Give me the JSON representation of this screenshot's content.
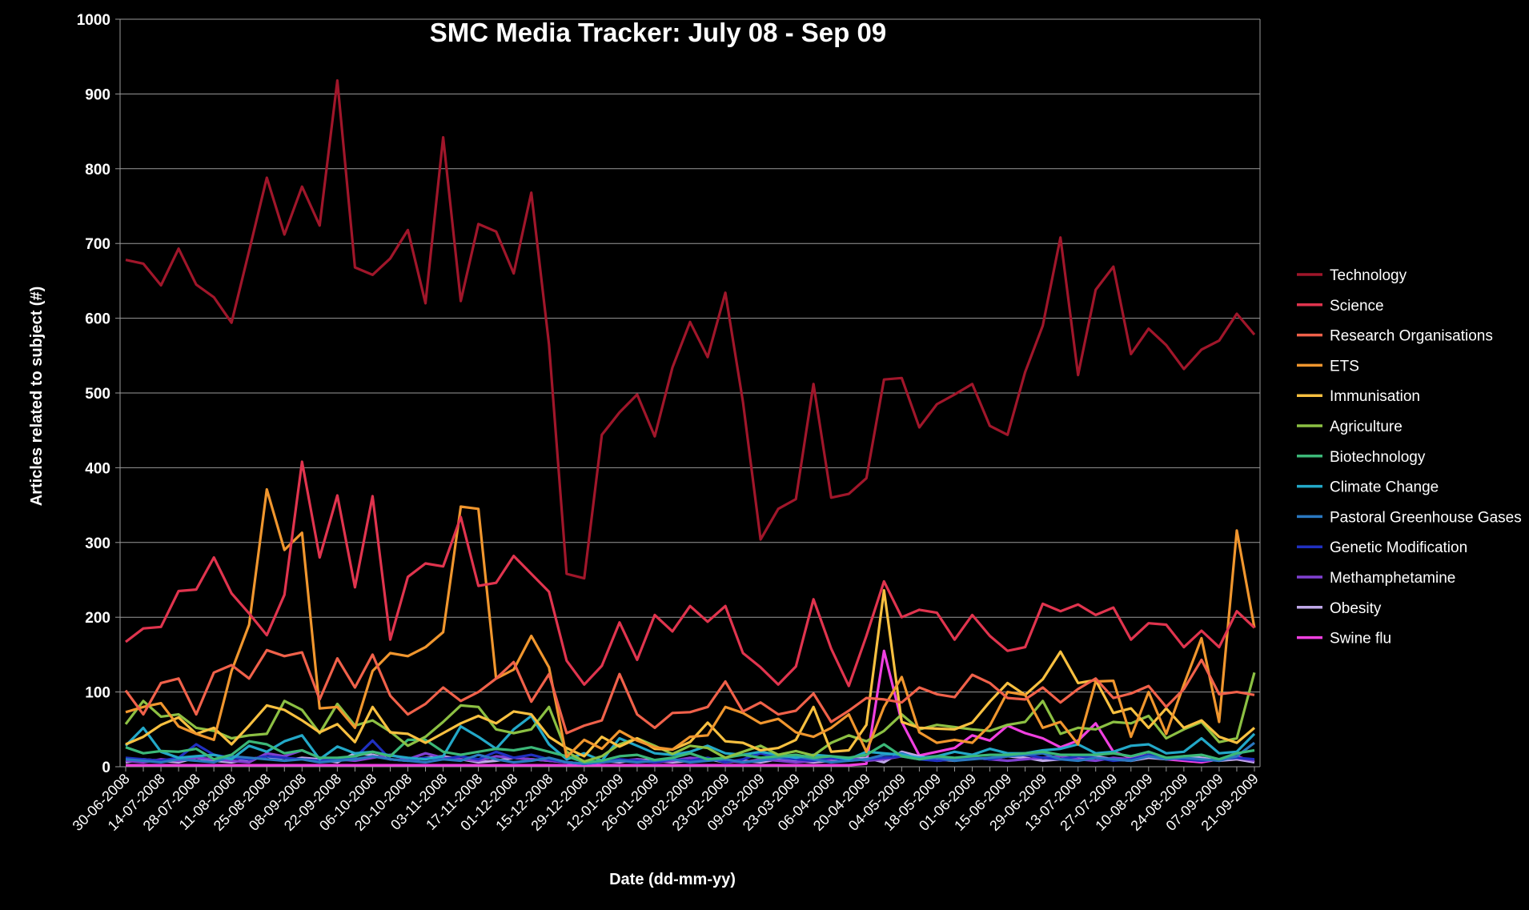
{
  "chart_data": {
    "type": "line",
    "title": "SMC Media Tracker: July 08 - Sep 09",
    "xlabel": "Date (dd-mm-yy)",
    "ylabel": "Articles related to subject (#)",
    "ylim": [
      0,
      1000
    ],
    "yticks": [
      0,
      100,
      200,
      300,
      400,
      500,
      600,
      700,
      800,
      900,
      1000
    ],
    "grid": "horizontal",
    "legend_position": "right",
    "x_tick_labels": [
      "30-06-2008",
      "14-07-2008",
      "28-07-2008",
      "11-08-2008",
      "25-08-2008",
      "08-09-2008",
      "22-09-2008",
      "06-10-2008",
      "20-10-2008",
      "03-11-2008",
      "17-11-2008",
      "01-12-2008",
      "15-12-2008",
      "29-12-2008",
      "12-01-2009",
      "26-01-2009",
      "09-02-2009",
      "23-02-2009",
      "09-03-2009",
      "23-03-2009",
      "06-04-2009",
      "20-04-2009",
      "04-05-2009",
      "18-05-2009",
      "01-06-2009",
      "15-06-2009",
      "29-06-2009",
      "13-07-2009",
      "27-07-2009",
      "10-08-2009",
      "24-08-2009",
      "07-09-2009",
      "21-09-2009"
    ],
    "x": [
      "30-06-2008",
      "07-07-2008",
      "14-07-2008",
      "21-07-2008",
      "28-07-2008",
      "04-08-2008",
      "11-08-2008",
      "18-08-2008",
      "25-08-2008",
      "01-09-2008",
      "08-09-2008",
      "15-09-2008",
      "22-09-2008",
      "29-09-2008",
      "06-10-2008",
      "13-10-2008",
      "20-10-2008",
      "27-10-2008",
      "03-11-2008",
      "10-11-2008",
      "17-11-2008",
      "24-11-2008",
      "01-12-2008",
      "08-12-2008",
      "15-12-2008",
      "22-12-2008",
      "29-12-2008",
      "05-01-2009",
      "12-01-2009",
      "19-01-2009",
      "26-01-2009",
      "02-02-2009",
      "09-02-2009",
      "16-02-2009",
      "23-02-2009",
      "02-03-2009",
      "09-03-2009",
      "16-03-2009",
      "23-03-2009",
      "30-03-2009",
      "06-04-2009",
      "13-04-2009",
      "20-04-2009",
      "27-04-2009",
      "04-05-2009",
      "11-05-2009",
      "18-05-2009",
      "25-05-2009",
      "01-06-2009",
      "08-06-2009",
      "15-06-2009",
      "22-06-2009",
      "29-06-2009",
      "06-07-2009",
      "13-07-2009",
      "20-07-2009",
      "27-07-2009",
      "03-08-2009",
      "10-08-2009",
      "17-08-2009",
      "24-08-2009",
      "31-08-2009",
      "07-09-2009",
      "14-09-2009",
      "21-09-2009"
    ],
    "series": [
      {
        "name": "Technology",
        "color": "#a0162a",
        "values": [
          678,
          673,
          644,
          693,
          645,
          628,
          594,
          690,
          788,
          712,
          776,
          724,
          918,
          668,
          658,
          680,
          718,
          620,
          842,
          623,
          726,
          716,
          660,
          768,
          565,
          258,
          252,
          444,
          474,
          498,
          442,
          534,
          595,
          548,
          634,
          488,
          304,
          345,
          358,
          512,
          360,
          365,
          386,
          518,
          520,
          454,
          485,
          498,
          512,
          456,
          444,
          528,
          590,
          708,
          524,
          638,
          669,
          552,
          586,
          564,
          532,
          558,
          570,
          606,
          578
        ]
      },
      {
        "name": "Science",
        "color": "#e0344e",
        "values": [
          167,
          185,
          187,
          235,
          237,
          280,
          232,
          205,
          176,
          230,
          408,
          280,
          363,
          240,
          362,
          170,
          254,
          272,
          268,
          334,
          242,
          246,
          282,
          258,
          234,
          142,
          110,
          135,
          193,
          143,
          203,
          181,
          215,
          194,
          215,
          152,
          133,
          110,
          134,
          224,
          158,
          108,
          175,
          248,
          200,
          210,
          206,
          170,
          203,
          175,
          155,
          160,
          218,
          208,
          217,
          203,
          213,
          170,
          192,
          190,
          160,
          182,
          160,
          208,
          186
        ]
      },
      {
        "name": "Research Organisations",
        "color": "#f0614a",
        "values": [
          102,
          70,
          112,
          118,
          70,
          126,
          136,
          118,
          156,
          148,
          153,
          90,
          145,
          106,
          150,
          95,
          70,
          84,
          106,
          88,
          100,
          118,
          140,
          87,
          124,
          45,
          55,
          62,
          124,
          70,
          52,
          72,
          73,
          80,
          114,
          74,
          86,
          70,
          75,
          98,
          60,
          75,
          92,
          90,
          86,
          106,
          97,
          93,
          123,
          112,
          92,
          90,
          106,
          86,
          104,
          118,
          92,
          98,
          108,
          80,
          104,
          143,
          97,
          100,
          96
        ]
      },
      {
        "name": "ETS",
        "color": "#f0962e",
        "values": [
          73,
          80,
          85,
          54,
          44,
          36,
          128,
          190,
          371,
          290,
          313,
          78,
          80,
          52,
          128,
          152,
          148,
          160,
          180,
          348,
          345,
          118,
          130,
          175,
          133,
          13,
          36,
          24,
          48,
          35,
          26,
          23,
          40,
          42,
          80,
          72,
          58,
          64,
          46,
          40,
          52,
          70,
          20,
          80,
          120,
          46,
          32,
          36,
          32,
          55,
          100,
          96,
          52,
          60,
          30,
          114,
          115,
          40,
          100,
          44,
          110,
          172,
          60,
          316,
          186
        ]
      },
      {
        "name": "Immunisation",
        "color": "#f8c040",
        "values": [
          30,
          40,
          56,
          66,
          44,
          52,
          30,
          55,
          82,
          76,
          62,
          46,
          57,
          33,
          80,
          46,
          44,
          32,
          45,
          58,
          68,
          58,
          74,
          70,
          40,
          25,
          14,
          40,
          27,
          38,
          24,
          23,
          33,
          59,
          34,
          32,
          22,
          25,
          36,
          80,
          20,
          22,
          56,
          236,
          60,
          52,
          51,
          50,
          59,
          87,
          112,
          96,
          117,
          154,
          112,
          116,
          72,
          78,
          52,
          78,
          52,
          62,
          40,
          32,
          52
        ]
      },
      {
        "name": "Agriculture",
        "color": "#8cc043",
        "values": [
          57,
          88,
          67,
          70,
          52,
          48,
          38,
          42,
          44,
          88,
          76,
          45,
          84,
          55,
          62,
          47,
          28,
          40,
          60,
          82,
          80,
          50,
          45,
          50,
          80,
          20,
          7,
          14,
          30,
          38,
          28,
          17,
          28,
          25,
          12,
          20,
          28,
          16,
          21,
          15,
          32,
          42,
          34,
          48,
          70,
          50,
          56,
          53,
          50,
          48,
          56,
          60,
          88,
          44,
          52,
          50,
          60,
          58,
          68,
          38,
          50,
          60,
          33,
          38,
          126
        ]
      },
      {
        "name": "Biotechnology",
        "color": "#3cb878",
        "values": [
          26,
          18,
          21,
          20,
          24,
          10,
          16,
          34,
          30,
          18,
          22,
          12,
          12,
          14,
          20,
          14,
          36,
          36,
          20,
          16,
          20,
          24,
          22,
          26,
          20,
          14,
          6,
          8,
          14,
          16,
          9,
          12,
          18,
          10,
          12,
          16,
          12,
          14,
          16,
          12,
          14,
          12,
          16,
          30,
          14,
          10,
          14,
          12,
          14,
          16,
          16,
          18,
          20,
          16,
          16,
          16,
          18,
          14,
          20,
          12,
          14,
          16,
          10,
          18,
          22
        ]
      },
      {
        "name": "Climate Change",
        "color": "#23a8c8",
        "values": [
          28,
          52,
          20,
          12,
          14,
          16,
          10,
          28,
          20,
          34,
          42,
          10,
          27,
          18,
          20,
          15,
          12,
          10,
          14,
          54,
          40,
          24,
          50,
          68,
          30,
          10,
          18,
          8,
          38,
          28,
          18,
          16,
          20,
          28,
          18,
          16,
          20,
          16,
          12,
          16,
          14,
          10,
          20,
          18,
          16,
          12,
          14,
          20,
          16,
          24,
          18,
          18,
          22,
          24,
          30,
          18,
          20,
          28,
          30,
          18,
          20,
          38,
          18,
          20,
          44
        ]
      },
      {
        "name": "Pastoral Greenhouse Gases",
        "color": "#2a78c0",
        "values": [
          10,
          8,
          6,
          10,
          8,
          6,
          14,
          12,
          10,
          8,
          10,
          6,
          8,
          10,
          14,
          10,
          8,
          6,
          10,
          8,
          16,
          10,
          6,
          8,
          12,
          6,
          4,
          6,
          8,
          6,
          8,
          10,
          6,
          8,
          10,
          6,
          8,
          12,
          14,
          10,
          6,
          8,
          10,
          16,
          18,
          10,
          12,
          8,
          10,
          12,
          14,
          16,
          18,
          10,
          8,
          12,
          10,
          8,
          14,
          10,
          12,
          10,
          8,
          14,
          32
        ]
      },
      {
        "name": "Genetic Modification",
        "color": "#2030c0",
        "values": [
          12,
          10,
          8,
          12,
          30,
          16,
          12,
          10,
          14,
          12,
          10,
          8,
          10,
          12,
          35,
          10,
          8,
          12,
          10,
          14,
          10,
          20,
          12,
          16,
          10,
          6,
          4,
          6,
          10,
          8,
          6,
          10,
          8,
          12,
          6,
          10,
          18,
          12,
          10,
          8,
          12,
          8,
          10,
          12,
          14,
          10,
          8,
          10,
          12,
          10,
          14,
          16,
          12,
          10,
          14,
          12,
          8,
          10,
          16,
          12,
          10,
          8,
          10,
          12,
          10
        ]
      },
      {
        "name": "Methamphetamine",
        "color": "#8040d0",
        "values": [
          8,
          6,
          10,
          8,
          12,
          10,
          8,
          6,
          18,
          14,
          22,
          12,
          10,
          8,
          12,
          16,
          10,
          18,
          12,
          10,
          8,
          14,
          12,
          10,
          8,
          6,
          4,
          6,
          8,
          10,
          6,
          8,
          12,
          10,
          8,
          6,
          10,
          8,
          6,
          8,
          10,
          12,
          8,
          10,
          14,
          12,
          8,
          10,
          12,
          10,
          8,
          10,
          12,
          14,
          10,
          8,
          12,
          10,
          14,
          12,
          10,
          8,
          10,
          12,
          8
        ]
      },
      {
        "name": "Obesity",
        "color": "#c0a8e8",
        "values": [
          6,
          10,
          8,
          6,
          12,
          8,
          6,
          10,
          14,
          8,
          12,
          10,
          6,
          18,
          16,
          10,
          8,
          12,
          14,
          10,
          6,
          8,
          12,
          10,
          8,
          6,
          4,
          8,
          6,
          10,
          8,
          6,
          8,
          10,
          6,
          8,
          6,
          10,
          8,
          6,
          8,
          10,
          12,
          6,
          20,
          14,
          10,
          8,
          12,
          10,
          14,
          12,
          8,
          10,
          12,
          14,
          10,
          8,
          12,
          10,
          14,
          12,
          8,
          10,
          6
        ]
      },
      {
        "name": "Swine flu",
        "color": "#f040e0",
        "values": [
          2,
          2,
          2,
          2,
          2,
          2,
          2,
          2,
          2,
          2,
          2,
          2,
          2,
          2,
          2,
          2,
          2,
          2,
          2,
          2,
          2,
          2,
          2,
          2,
          2,
          2,
          2,
          2,
          2,
          2,
          2,
          2,
          2,
          2,
          2,
          2,
          2,
          2,
          2,
          2,
          2,
          2,
          4,
          155,
          60,
          15,
          20,
          25,
          42,
          35,
          55,
          45,
          38,
          26,
          35,
          58,
          20,
          12,
          16,
          10,
          8,
          6,
          10,
          14,
          6
        ]
      }
    ]
  }
}
